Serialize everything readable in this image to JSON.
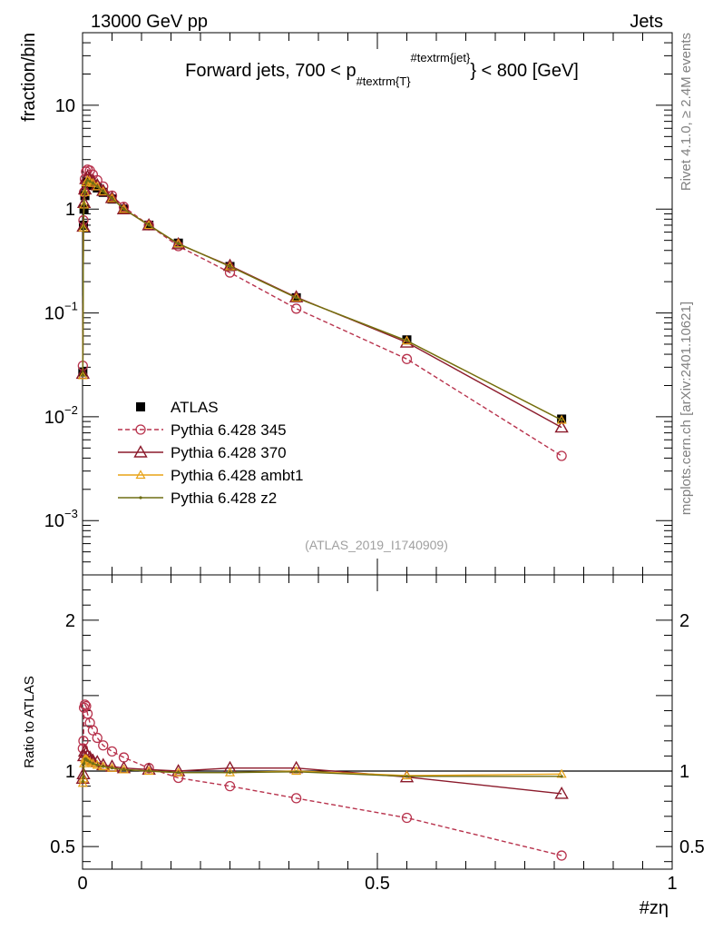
{
  "header": {
    "left": "13000 GeV pp",
    "right": "Jets"
  },
  "side_labels": {
    "top": "Rivet 4.1.0, ≥ 2.4M events",
    "bottom": "mcplots.cern.ch [arXiv:2401.10621]"
  },
  "analysis_tag": "(ATLAS_2019_I1740909)",
  "colors": {
    "atlas": "#000000",
    "p345": "#b8334d",
    "p370": "#8b1a2b",
    "ambt1": "#e8a317",
    "z2": "#6e6e14"
  },
  "chart_data": [
    {
      "type": "line",
      "panel": "main",
      "title_parts": {
        "pre": "Forward jets, 700 < p",
        "sub": "#textrm{T}",
        "sup": "#textrm{jet}",
        "post": "} < 800 [GeV]"
      },
      "ylabel": "fraction/bin",
      "yscale": "log",
      "ylim": [
        0.0003,
        50
      ],
      "xlim": [
        0,
        1
      ],
      "y_ticks": [
        {
          "value": 10,
          "label": "10"
        },
        {
          "value": 1,
          "label": "1"
        },
        {
          "value": 0.1,
          "base": "10",
          "exp": "−1"
        },
        {
          "value": 0.01,
          "base": "10",
          "exp": "−2"
        },
        {
          "value": 0.001,
          "base": "10",
          "exp": "−3"
        }
      ],
      "x": [
        0.0005,
        0.0015,
        0.0025,
        0.004,
        0.006,
        0.0085,
        0.0125,
        0.0175,
        0.025,
        0.035,
        0.05,
        0.07,
        0.1125,
        0.1625,
        0.25,
        0.3625,
        0.55,
        0.8125
      ],
      "series": [
        {
          "name": "ATLAS",
          "style": "square",
          "values": [
            0.027,
            0.7,
            1.0,
            1.35,
            1.7,
            1.8,
            1.8,
            1.7,
            1.6,
            1.45,
            1.25,
            1.0,
            0.7,
            0.47,
            0.28,
            0.14,
            0.055,
            0.0095
          ]
        },
        {
          "name": "Pythia 6.428 345",
          "style": "circle-dashed",
          "values": [
            0.031,
            0.78,
            1.45,
            1.95,
            2.3,
            2.4,
            2.35,
            2.15,
            1.9,
            1.65,
            1.35,
            1.05,
            0.7,
            0.44,
            0.245,
            0.11,
            0.036,
            0.0042
          ]
        },
        {
          "name": "Pythia 6.428 370",
          "style": "triangle",
          "values": [
            0.026,
            0.68,
            1.15,
            1.55,
            1.95,
            2.05,
            1.95,
            1.85,
            1.7,
            1.5,
            1.28,
            1.0,
            0.7,
            0.46,
            0.285,
            0.142,
            0.052,
            0.0079
          ]
        },
        {
          "name": "Pythia 6.428 ambt1",
          "style": "triangle-small",
          "values": [
            0.025,
            0.66,
            1.1,
            1.45,
            1.8,
            1.9,
            1.85,
            1.78,
            1.65,
            1.48,
            1.27,
            1.0,
            0.7,
            0.465,
            0.28,
            0.14,
            0.054,
            0.0093
          ]
        },
        {
          "name": "Pythia 6.428 z2",
          "style": "dot",
          "values": [
            0.025,
            0.66,
            1.1,
            1.45,
            1.8,
            1.9,
            1.85,
            1.78,
            1.65,
            1.48,
            1.27,
            1.0,
            0.7,
            0.465,
            0.28,
            0.14,
            0.054,
            0.0093
          ]
        }
      ]
    },
    {
      "type": "line",
      "panel": "ratio",
      "ylabel": "Ratio to ATLAS",
      "xlabel": "#zη",
      "ylim": [
        0.35,
        2.3
      ],
      "xlim": [
        0,
        1
      ],
      "y_ticks": [
        {
          "value": 2,
          "label": "2"
        },
        {
          "value": 1,
          "label": "1"
        },
        {
          "value": 0.5,
          "label": "0.5"
        }
      ],
      "x_ticks": [
        {
          "value": 0,
          "label": "0"
        },
        {
          "value": 0.5,
          "label": "0.5"
        },
        {
          "value": 1,
          "label": "1"
        }
      ],
      "x": [
        0.0005,
        0.0015,
        0.0025,
        0.004,
        0.006,
        0.0085,
        0.0125,
        0.0175,
        0.025,
        0.035,
        0.05,
        0.07,
        0.1125,
        0.1625,
        0.25,
        0.3625,
        0.55,
        0.8125
      ],
      "series": [
        {
          "name": "Pythia 6.428 345",
          "style": "circle-dashed",
          "values": [
            1.15,
            1.2,
            1.42,
            1.44,
            1.43,
            1.38,
            1.32,
            1.27,
            1.22,
            1.17,
            1.13,
            1.09,
            1.02,
            0.955,
            0.9,
            0.82,
            0.69,
            0.44
          ]
        },
        {
          "name": "Pythia 6.428 370",
          "style": "triangle",
          "values": [
            0.95,
            0.98,
            1.1,
            1.13,
            1.12,
            1.1,
            1.09,
            1.07,
            1.06,
            1.04,
            1.03,
            1.02,
            1.01,
            1.0,
            1.02,
            1.02,
            0.96,
            0.85
          ]
        },
        {
          "name": "Pythia 6.428 ambt1",
          "style": "triangle-small",
          "values": [
            0.92,
            0.95,
            1.05,
            1.08,
            1.08,
            1.07,
            1.06,
            1.05,
            1.04,
            1.03,
            1.02,
            1.01,
            1.0,
            0.99,
            0.99,
            1.0,
            0.97,
            0.98
          ]
        },
        {
          "name": "Pythia 6.428 z2",
          "style": "dot",
          "values": [
            0.93,
            0.96,
            1.05,
            1.08,
            1.08,
            1.07,
            1.06,
            1.05,
            1.04,
            1.03,
            1.02,
            1.01,
            1.0,
            0.99,
            0.99,
            0.995,
            0.965,
            0.965
          ]
        }
      ]
    }
  ]
}
